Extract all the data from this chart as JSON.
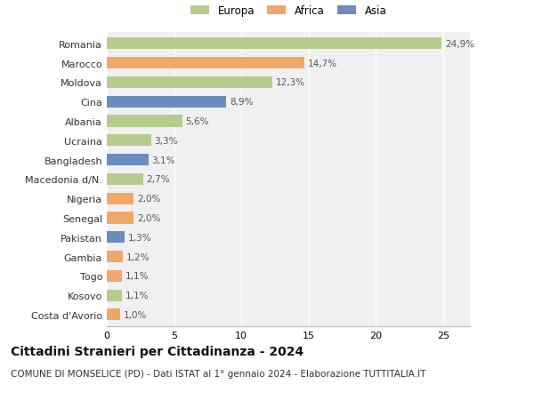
{
  "categories": [
    "Romania",
    "Marocco",
    "Moldova",
    "Cina",
    "Albania",
    "Ucraina",
    "Bangladesh",
    "Macedonia d/N.",
    "Nigeria",
    "Senegal",
    "Pakistan",
    "Gambia",
    "Togo",
    "Kosovo",
    "Costa d'Avorio"
  ],
  "values": [
    24.9,
    14.7,
    12.3,
    8.9,
    5.6,
    3.3,
    3.1,
    2.7,
    2.0,
    2.0,
    1.3,
    1.2,
    1.1,
    1.1,
    1.0
  ],
  "labels": [
    "24,9%",
    "14,7%",
    "12,3%",
    "8,9%",
    "5,6%",
    "3,3%",
    "3,1%",
    "2,7%",
    "2,0%",
    "2,0%",
    "1,3%",
    "1,2%",
    "1,1%",
    "1,1%",
    "1,0%"
  ],
  "continents": [
    "Europa",
    "Africa",
    "Europa",
    "Asia",
    "Europa",
    "Europa",
    "Asia",
    "Europa",
    "Africa",
    "Africa",
    "Asia",
    "Africa",
    "Africa",
    "Europa",
    "Africa"
  ],
  "colors": {
    "Europa": "#b5cc8e",
    "Africa": "#f0a868",
    "Asia": "#6b8cbf"
  },
  "xlim": [
    0,
    27
  ],
  "xticks": [
    0,
    5,
    10,
    15,
    20,
    25
  ],
  "title": "Cittadini Stranieri per Cittadinanza - 2024",
  "subtitle": "COMUNE DI MONSELICE (PD) - Dati ISTAT al 1° gennaio 2024 - Elaborazione TUTTITALIA.IT",
  "background_color": "#ffffff",
  "plot_background": "#f0f0f0",
  "grid_color": "#ffffff",
  "bar_height": 0.6,
  "title_fontsize": 10,
  "subtitle_fontsize": 7.5,
  "label_fontsize": 7.5,
  "tick_fontsize": 8,
  "legend_fontsize": 8.5
}
